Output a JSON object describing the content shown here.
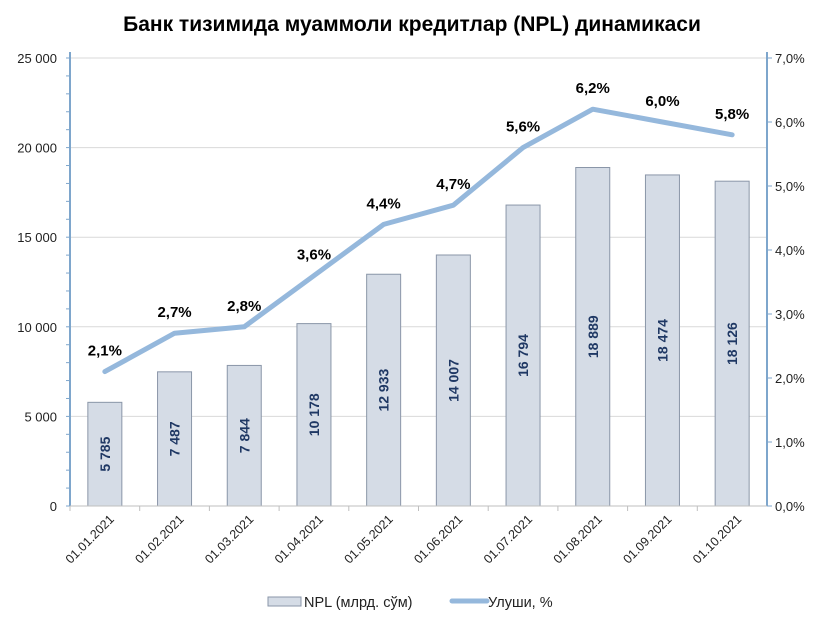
{
  "chart_data": {
    "type": "bar+line",
    "title": "Банк тизимида муаммоли кредитлар (NPL) динамикаси",
    "categories": [
      "01.01.2021",
      "01.02.2021",
      "01.03.2021",
      "01.04.2021",
      "01.05.2021",
      "01.06.2021",
      "01.07.2021",
      "01.08.2021",
      "01.09.2021",
      "01.10.2021"
    ],
    "series": [
      {
        "name": "NPL (млрд. сўм)",
        "type": "bar",
        "axis": "left",
        "values": [
          5785,
          7487,
          7844,
          10178,
          12933,
          14007,
          16794,
          18889,
          18474,
          18126
        ],
        "labels": [
          "5 785",
          "7 487",
          "7 844",
          "10 178",
          "12 933",
          "14 007",
          "16 794",
          "18 889",
          "18 474",
          "18 126"
        ]
      },
      {
        "name": "Улуши, %",
        "type": "line",
        "axis": "right",
        "values": [
          2.1,
          2.7,
          2.8,
          3.6,
          4.4,
          4.7,
          5.6,
          6.2,
          6.0,
          5.8
        ],
        "labels": [
          "2,1%",
          "2,7%",
          "2,8%",
          "3,6%",
          "4,4%",
          "4,7%",
          "5,6%",
          "6,2%",
          "6,0%",
          "5,8%"
        ]
      }
    ],
    "y_left": {
      "range": [
        0,
        25000
      ],
      "ticks": [
        0,
        5000,
        10000,
        15000,
        20000,
        25000
      ],
      "tick_labels": [
        "0",
        "5 000",
        "10 000",
        "15 000",
        "20 000",
        "25 000"
      ]
    },
    "y_right": {
      "range": [
        0,
        7
      ],
      "ticks": [
        0,
        1,
        2,
        3,
        4,
        5,
        6,
        7
      ],
      "tick_labels": [
        "0,0%",
        "1,0%",
        "2,0%",
        "3,0%",
        "4,0%",
        "5,0%",
        "6,0%",
        "7,0%"
      ]
    },
    "grid": true,
    "legend_position": "bottom",
    "colors": {
      "bar_fill": "#d5dce6",
      "bar_stroke": "#8a96a8",
      "line": "#95b8dc",
      "axis": "#7ea6cc",
      "grid": "#d9d9d9"
    }
  }
}
